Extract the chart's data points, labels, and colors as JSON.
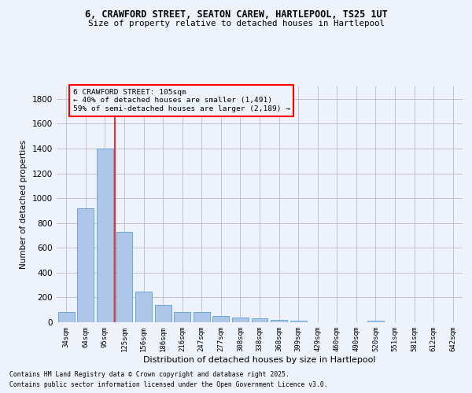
{
  "title1": "6, CRAWFORD STREET, SEATON CAREW, HARTLEPOOL, TS25 1UT",
  "title2": "Size of property relative to detached houses in Hartlepool",
  "xlabel": "Distribution of detached houses by size in Hartlepool",
  "ylabel": "Number of detached properties",
  "categories": [
    "34sqm",
    "64sqm",
    "95sqm",
    "125sqm",
    "156sqm",
    "186sqm",
    "216sqm",
    "247sqm",
    "277sqm",
    "308sqm",
    "338sqm",
    "368sqm",
    "399sqm",
    "429sqm",
    "460sqm",
    "490sqm",
    "520sqm",
    "551sqm",
    "581sqm",
    "612sqm",
    "642sqm"
  ],
  "values": [
    85,
    920,
    1400,
    730,
    245,
    140,
    85,
    85,
    50,
    35,
    30,
    20,
    10,
    0,
    0,
    0,
    10,
    0,
    0,
    0,
    0
  ],
  "bar_color": "#aec6e8",
  "bar_edge_color": "#5a9fd4",
  "vline_color": "red",
  "vline_x_index": 2.5,
  "annotation_box_text": "6 CRAWFORD STREET: 105sqm\n← 40% of detached houses are smaller (1,491)\n59% of semi-detached houses are larger (2,189) →",
  "box_edge_color": "red",
  "background_color": "#eef2fb",
  "grid_color": "#bbbbcc",
  "footer_line1": "Contains HM Land Registry data © Crown copyright and database right 2025.",
  "footer_line2": "Contains public sector information licensed under the Open Government Licence v3.0.",
  "ylim": [
    0,
    1900
  ],
  "yticks": [
    0,
    200,
    400,
    600,
    800,
    1000,
    1200,
    1400,
    1600,
    1800
  ]
}
